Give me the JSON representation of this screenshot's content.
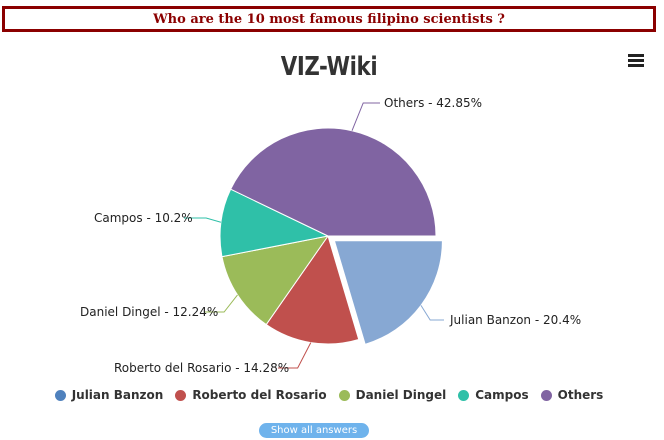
{
  "question": "Who are the 10 most famous filipino scientists ?",
  "menu_icon": "hamburger-menu-icon",
  "show_all_label": "Show all answers",
  "chart_data": {
    "type": "pie",
    "title": "VIZ-Wiki",
    "legend_position": "bottom",
    "slices": [
      {
        "name": "Julian Banzon",
        "value": 20.4,
        "label": "Julian Banzon - 20.4%",
        "color": "#87a8d3",
        "sliced": true
      },
      {
        "name": "Roberto del Rosario",
        "value": 14.28,
        "label": "Roberto del Rosario - 14.28%",
        "color": "#c0504d",
        "sliced": false
      },
      {
        "name": "Daniel Dingel",
        "value": 12.24,
        "label": "Daniel Dingel - 12.24%",
        "color": "#9bbb59",
        "sliced": false
      },
      {
        "name": "Campos",
        "value": 10.2,
        "label": "Campos - 10.2%",
        "color": "#2fc0a8",
        "sliced": false
      },
      {
        "name": "Others",
        "value": 42.85,
        "label": "Others - 42.85%",
        "color": "#8064a2",
        "sliced": false
      }
    ],
    "legend_colors": [
      "#4f81bd",
      "#c0504d",
      "#9bbb59",
      "#2fc0a8",
      "#8064a2"
    ]
  }
}
